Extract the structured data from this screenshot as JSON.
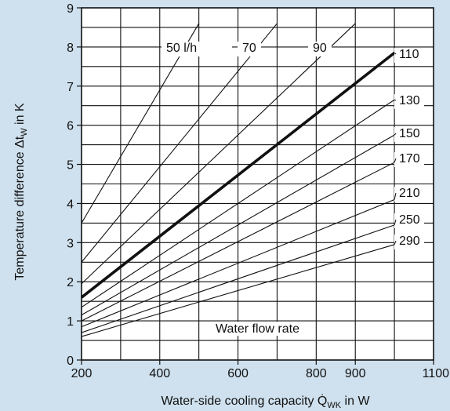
{
  "chart_data": {
    "type": "line",
    "title": "",
    "xlabel": "Water-side cooling capacity Q̇",
    "xlabel_sub": "WK",
    "xlabel_suffix": " in W",
    "ylabel": "Temperature difference Δt",
    "ylabel_sub": "W",
    "ylabel_suffix": " in K",
    "xlim": [
      200,
      1100
    ],
    "ylim": [
      0,
      9
    ],
    "x_ticks": [
      200,
      400,
      600,
      800,
      900,
      1100
    ],
    "y_ticks": [
      0,
      1,
      2,
      3,
      4,
      5,
      6,
      7,
      8,
      9
    ],
    "grid": true,
    "grid_x_step": 100,
    "grid_y_step": 0.5,
    "series": [
      {
        "name": "50 l/h",
        "values": [
          [
            200,
            3.5
          ],
          [
            500,
            8.6
          ]
        ],
        "bold": false
      },
      {
        "name": "70",
        "values": [
          [
            200,
            2.5
          ],
          [
            700,
            8.6
          ]
        ],
        "bold": false
      },
      {
        "name": "90",
        "values": [
          [
            200,
            1.95
          ],
          [
            900,
            8.6
          ]
        ],
        "bold": false
      },
      {
        "name": "110",
        "values": [
          [
            200,
            1.6
          ],
          [
            1000,
            7.85
          ]
        ],
        "bold": true
      },
      {
        "name": "130",
        "values": [
          [
            200,
            1.35
          ],
          [
            1000,
            6.65
          ]
        ],
        "bold": false
      },
      {
        "name": "150",
        "values": [
          [
            200,
            1.15
          ],
          [
            1000,
            5.75
          ]
        ],
        "bold": false
      },
      {
        "name": "170",
        "values": [
          [
            200,
            1.0
          ],
          [
            1000,
            5.05
          ]
        ],
        "bold": false
      },
      {
        "name": "210",
        "values": [
          [
            200,
            0.85
          ],
          [
            1000,
            4.1
          ]
        ],
        "bold": false
      },
      {
        "name": "250",
        "values": [
          [
            200,
            0.7
          ],
          [
            1000,
            3.45
          ]
        ],
        "bold": false
      },
      {
        "name": "290",
        "values": [
          [
            200,
            0.6
          ],
          [
            1000,
            2.95
          ]
        ],
        "bold": false
      }
    ],
    "annotations": [
      {
        "text": "Water flow rate"
      }
    ]
  }
}
